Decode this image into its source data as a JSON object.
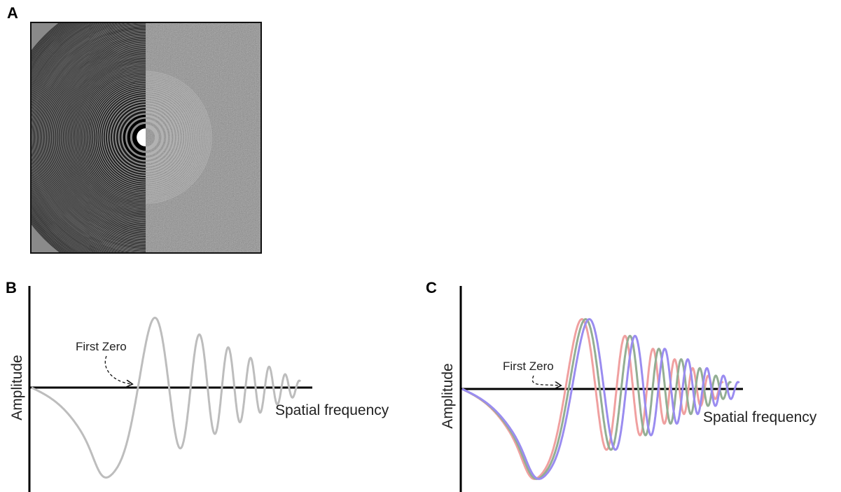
{
  "panel_a": {
    "label": "A"
  },
  "panel_b": {
    "label": "B",
    "annotation": "First Zero",
    "y_axis_label": "Amplitude",
    "x_axis_label": "Spatial frequency"
  },
  "panel_c": {
    "label": "C",
    "annotation": "First Zero",
    "y_axis_label": "Amplitude",
    "x_axis_label": "Spatial frequency"
  }
}
